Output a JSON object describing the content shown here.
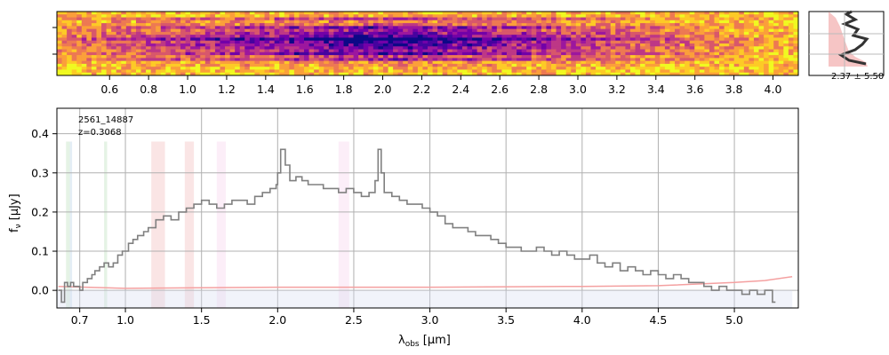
{
  "chart_data": [
    {
      "type": "heatmap",
      "name": "2D spectrum",
      "colormap": "plasma",
      "x_ticks": [
        "0.6",
        "0.8",
        "1.0",
        "1.2",
        "1.4",
        "1.6",
        "1.8",
        "2.0",
        "2.2",
        "2.4",
        "2.6",
        "2.8",
        "3.0",
        "3.2",
        "3.4",
        "3.6",
        "3.8",
        "4.0"
      ],
      "x_tick_values": [
        0.6,
        0.8,
        1.0,
        1.2,
        1.4,
        1.6,
        1.8,
        2.0,
        2.2,
        2.4,
        2.6,
        2.8,
        3.0,
        3.2,
        3.4,
        3.6,
        3.8,
        4.0
      ],
      "xlim": [
        0.33,
        4.13
      ],
      "rows": 22
    },
    {
      "type": "line",
      "name": "spatial profile",
      "annotation": "2.37 ± 5.50"
    },
    {
      "type": "line",
      "name": "1D spectrum",
      "label_id": "2561_14887",
      "label_z": "z=0.3068",
      "xlabel_prefix": "λ",
      "xlabel_sub": "obs",
      "xlabel_suffix": " [μm]",
      "ylabel_main": "f",
      "ylabel_sub": "ν",
      "ylabel_suffix": " [μJy]",
      "x_ticks": [
        "0.7",
        "1.0",
        "1.5",
        "2.0",
        "2.5",
        "3.0",
        "3.5",
        "4.0",
        "4.5",
        "5.0"
      ],
      "x_tick_values": [
        0.7,
        1.0,
        1.5,
        2.0,
        2.5,
        3.0,
        3.5,
        4.0,
        4.5,
        5.0
      ],
      "y_ticks": [
        "0.0",
        "0.1",
        "0.2",
        "0.3",
        "0.4"
      ],
      "y_tick_values": [
        0.0,
        0.1,
        0.2,
        0.3,
        0.4
      ],
      "xlim": [
        0.55,
        5.42
      ],
      "ylim": [
        -0.045,
        0.465
      ],
      "grid": true,
      "flux_color": "#808080",
      "error_color": "#f4a0a0",
      "line_bands": [
        {
          "x0": 0.61,
          "x1": 0.635,
          "color": "#2ca02c"
        },
        {
          "x0": 0.635,
          "x1": 0.65,
          "color": "#1f77b4"
        },
        {
          "x0": 0.86,
          "x1": 0.88,
          "color": "#2ca02c"
        },
        {
          "x0": 1.17,
          "x1": 1.21,
          "color": "#d62728"
        },
        {
          "x0": 1.21,
          "x1": 1.26,
          "color": "#d62728"
        },
        {
          "x0": 1.39,
          "x1": 1.45,
          "color": "#d62728"
        },
        {
          "x0": 1.6,
          "x1": 1.66,
          "color": "#e377c2"
        },
        {
          "x0": 2.4,
          "x1": 2.47,
          "color": "#e377c2"
        }
      ],
      "flux": [
        [
          0.56,
          0.0
        ],
        [
          0.58,
          -0.03
        ],
        [
          0.6,
          0.02
        ],
        [
          0.62,
          0.01
        ],
        [
          0.64,
          0.02
        ],
        [
          0.66,
          0.01
        ],
        [
          0.68,
          0.01
        ],
        [
          0.7,
          0.0
        ],
        [
          0.72,
          0.02
        ],
        [
          0.75,
          0.03
        ],
        [
          0.78,
          0.04
        ],
        [
          0.8,
          0.05
        ],
        [
          0.83,
          0.06
        ],
        [
          0.86,
          0.07
        ],
        [
          0.89,
          0.06
        ],
        [
          0.92,
          0.07
        ],
        [
          0.95,
          0.09
        ],
        [
          0.98,
          0.1
        ],
        [
          1.02,
          0.12
        ],
        [
          1.05,
          0.13
        ],
        [
          1.08,
          0.14
        ],
        [
          1.12,
          0.15
        ],
        [
          1.15,
          0.16
        ],
        [
          1.2,
          0.18
        ],
        [
          1.25,
          0.19
        ],
        [
          1.3,
          0.18
        ],
        [
          1.35,
          0.2
        ],
        [
          1.4,
          0.21
        ],
        [
          1.45,
          0.22
        ],
        [
          1.5,
          0.23
        ],
        [
          1.55,
          0.22
        ],
        [
          1.6,
          0.21
        ],
        [
          1.65,
          0.22
        ],
        [
          1.7,
          0.23
        ],
        [
          1.75,
          0.23
        ],
        [
          1.8,
          0.22
        ],
        [
          1.85,
          0.24
        ],
        [
          1.9,
          0.25
        ],
        [
          1.95,
          0.26
        ],
        [
          1.99,
          0.27
        ],
        [
          2.0,
          0.3
        ],
        [
          2.02,
          0.36
        ],
        [
          2.05,
          0.32
        ],
        [
          2.08,
          0.28
        ],
        [
          2.12,
          0.29
        ],
        [
          2.16,
          0.28
        ],
        [
          2.2,
          0.27
        ],
        [
          2.25,
          0.27
        ],
        [
          2.3,
          0.26
        ],
        [
          2.35,
          0.26
        ],
        [
          2.4,
          0.25
        ],
        [
          2.45,
          0.26
        ],
        [
          2.5,
          0.25
        ],
        [
          2.55,
          0.24
        ],
        [
          2.6,
          0.25
        ],
        [
          2.64,
          0.28
        ],
        [
          2.66,
          0.36
        ],
        [
          2.68,
          0.3
        ],
        [
          2.7,
          0.25
        ],
        [
          2.75,
          0.24
        ],
        [
          2.8,
          0.23
        ],
        [
          2.85,
          0.22
        ],
        [
          2.9,
          0.22
        ],
        [
          2.95,
          0.21
        ],
        [
          3.0,
          0.2
        ],
        [
          3.05,
          0.19
        ],
        [
          3.1,
          0.17
        ],
        [
          3.15,
          0.16
        ],
        [
          3.2,
          0.16
        ],
        [
          3.25,
          0.15
        ],
        [
          3.3,
          0.14
        ],
        [
          3.35,
          0.14
        ],
        [
          3.4,
          0.13
        ],
        [
          3.45,
          0.12
        ],
        [
          3.5,
          0.11
        ],
        [
          3.55,
          0.11
        ],
        [
          3.6,
          0.1
        ],
        [
          3.65,
          0.1
        ],
        [
          3.7,
          0.11
        ],
        [
          3.75,
          0.1
        ],
        [
          3.8,
          0.09
        ],
        [
          3.85,
          0.1
        ],
        [
          3.9,
          0.09
        ],
        [
          3.95,
          0.08
        ],
        [
          4.0,
          0.08
        ],
        [
          4.05,
          0.09
        ],
        [
          4.1,
          0.07
        ],
        [
          4.15,
          0.06
        ],
        [
          4.2,
          0.07
        ],
        [
          4.25,
          0.05
        ],
        [
          4.3,
          0.06
        ],
        [
          4.35,
          0.05
        ],
        [
          4.4,
          0.04
        ],
        [
          4.45,
          0.05
        ],
        [
          4.5,
          0.04
        ],
        [
          4.55,
          0.03
        ],
        [
          4.6,
          0.04
        ],
        [
          4.65,
          0.03
        ],
        [
          4.7,
          0.02
        ],
        [
          4.75,
          0.02
        ],
        [
          4.8,
          0.01
        ],
        [
          4.85,
          0.0
        ],
        [
          4.9,
          0.01
        ],
        [
          4.95,
          0.0
        ],
        [
          5.0,
          0.0
        ],
        [
          5.05,
          -0.01
        ],
        [
          5.1,
          0.0
        ],
        [
          5.15,
          -0.01
        ],
        [
          5.2,
          0.0
        ],
        [
          5.25,
          -0.03
        ]
      ],
      "error": [
        [
          0.56,
          0.01
        ],
        [
          1.0,
          0.005
        ],
        [
          2.0,
          0.008
        ],
        [
          3.0,
          0.008
        ],
        [
          4.0,
          0.01
        ],
        [
          4.5,
          0.012
        ],
        [
          5.0,
          0.02
        ],
        [
          5.2,
          0.025
        ],
        [
          5.38,
          0.035
        ]
      ]
    }
  ]
}
